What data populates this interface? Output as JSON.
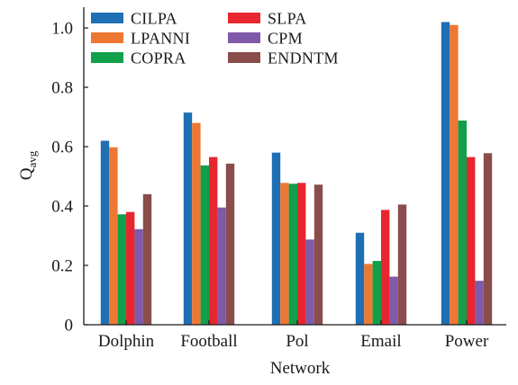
{
  "chart_data": {
    "type": "bar",
    "title": "",
    "xlabel": "Network",
    "ylabel": "Q",
    "ylabel_sub": "avg",
    "ylim": [
      0,
      1.07
    ],
    "yticks": [
      0,
      0.2,
      0.4,
      0.6,
      0.8,
      1.0
    ],
    "ytick_labels": [
      "0",
      "0.2",
      "0.4",
      "0.6",
      "0.8",
      "1.0"
    ],
    "grid": false,
    "legend_position": "top-left",
    "categories": [
      "Dolphin",
      "Football",
      "Pol",
      "Email",
      "Power"
    ],
    "series": [
      {
        "name": "CILPA",
        "color": "#1f6fb4",
        "values": [
          0.62,
          0.715,
          0.58,
          0.31,
          1.02
        ]
      },
      {
        "name": "LPANNI",
        "color": "#ee7733",
        "values": [
          0.598,
          0.68,
          0.478,
          0.205,
          1.01
        ]
      },
      {
        "name": "COPRA",
        "color": "#119f4a",
        "values": [
          0.372,
          0.537,
          0.475,
          0.215,
          0.688
        ]
      },
      {
        "name": "SLPA",
        "color": "#e8262f",
        "values": [
          0.38,
          0.565,
          0.478,
          0.387,
          0.565
        ]
      },
      {
        "name": "CPM",
        "color": "#7e5aa8",
        "values": [
          0.322,
          0.395,
          0.287,
          0.162,
          0.148
        ]
      },
      {
        "name": "ENDNTM",
        "color": "#8a4d4b",
        "values": [
          0.44,
          0.543,
          0.472,
          0.405,
          0.578
        ]
      }
    ]
  }
}
